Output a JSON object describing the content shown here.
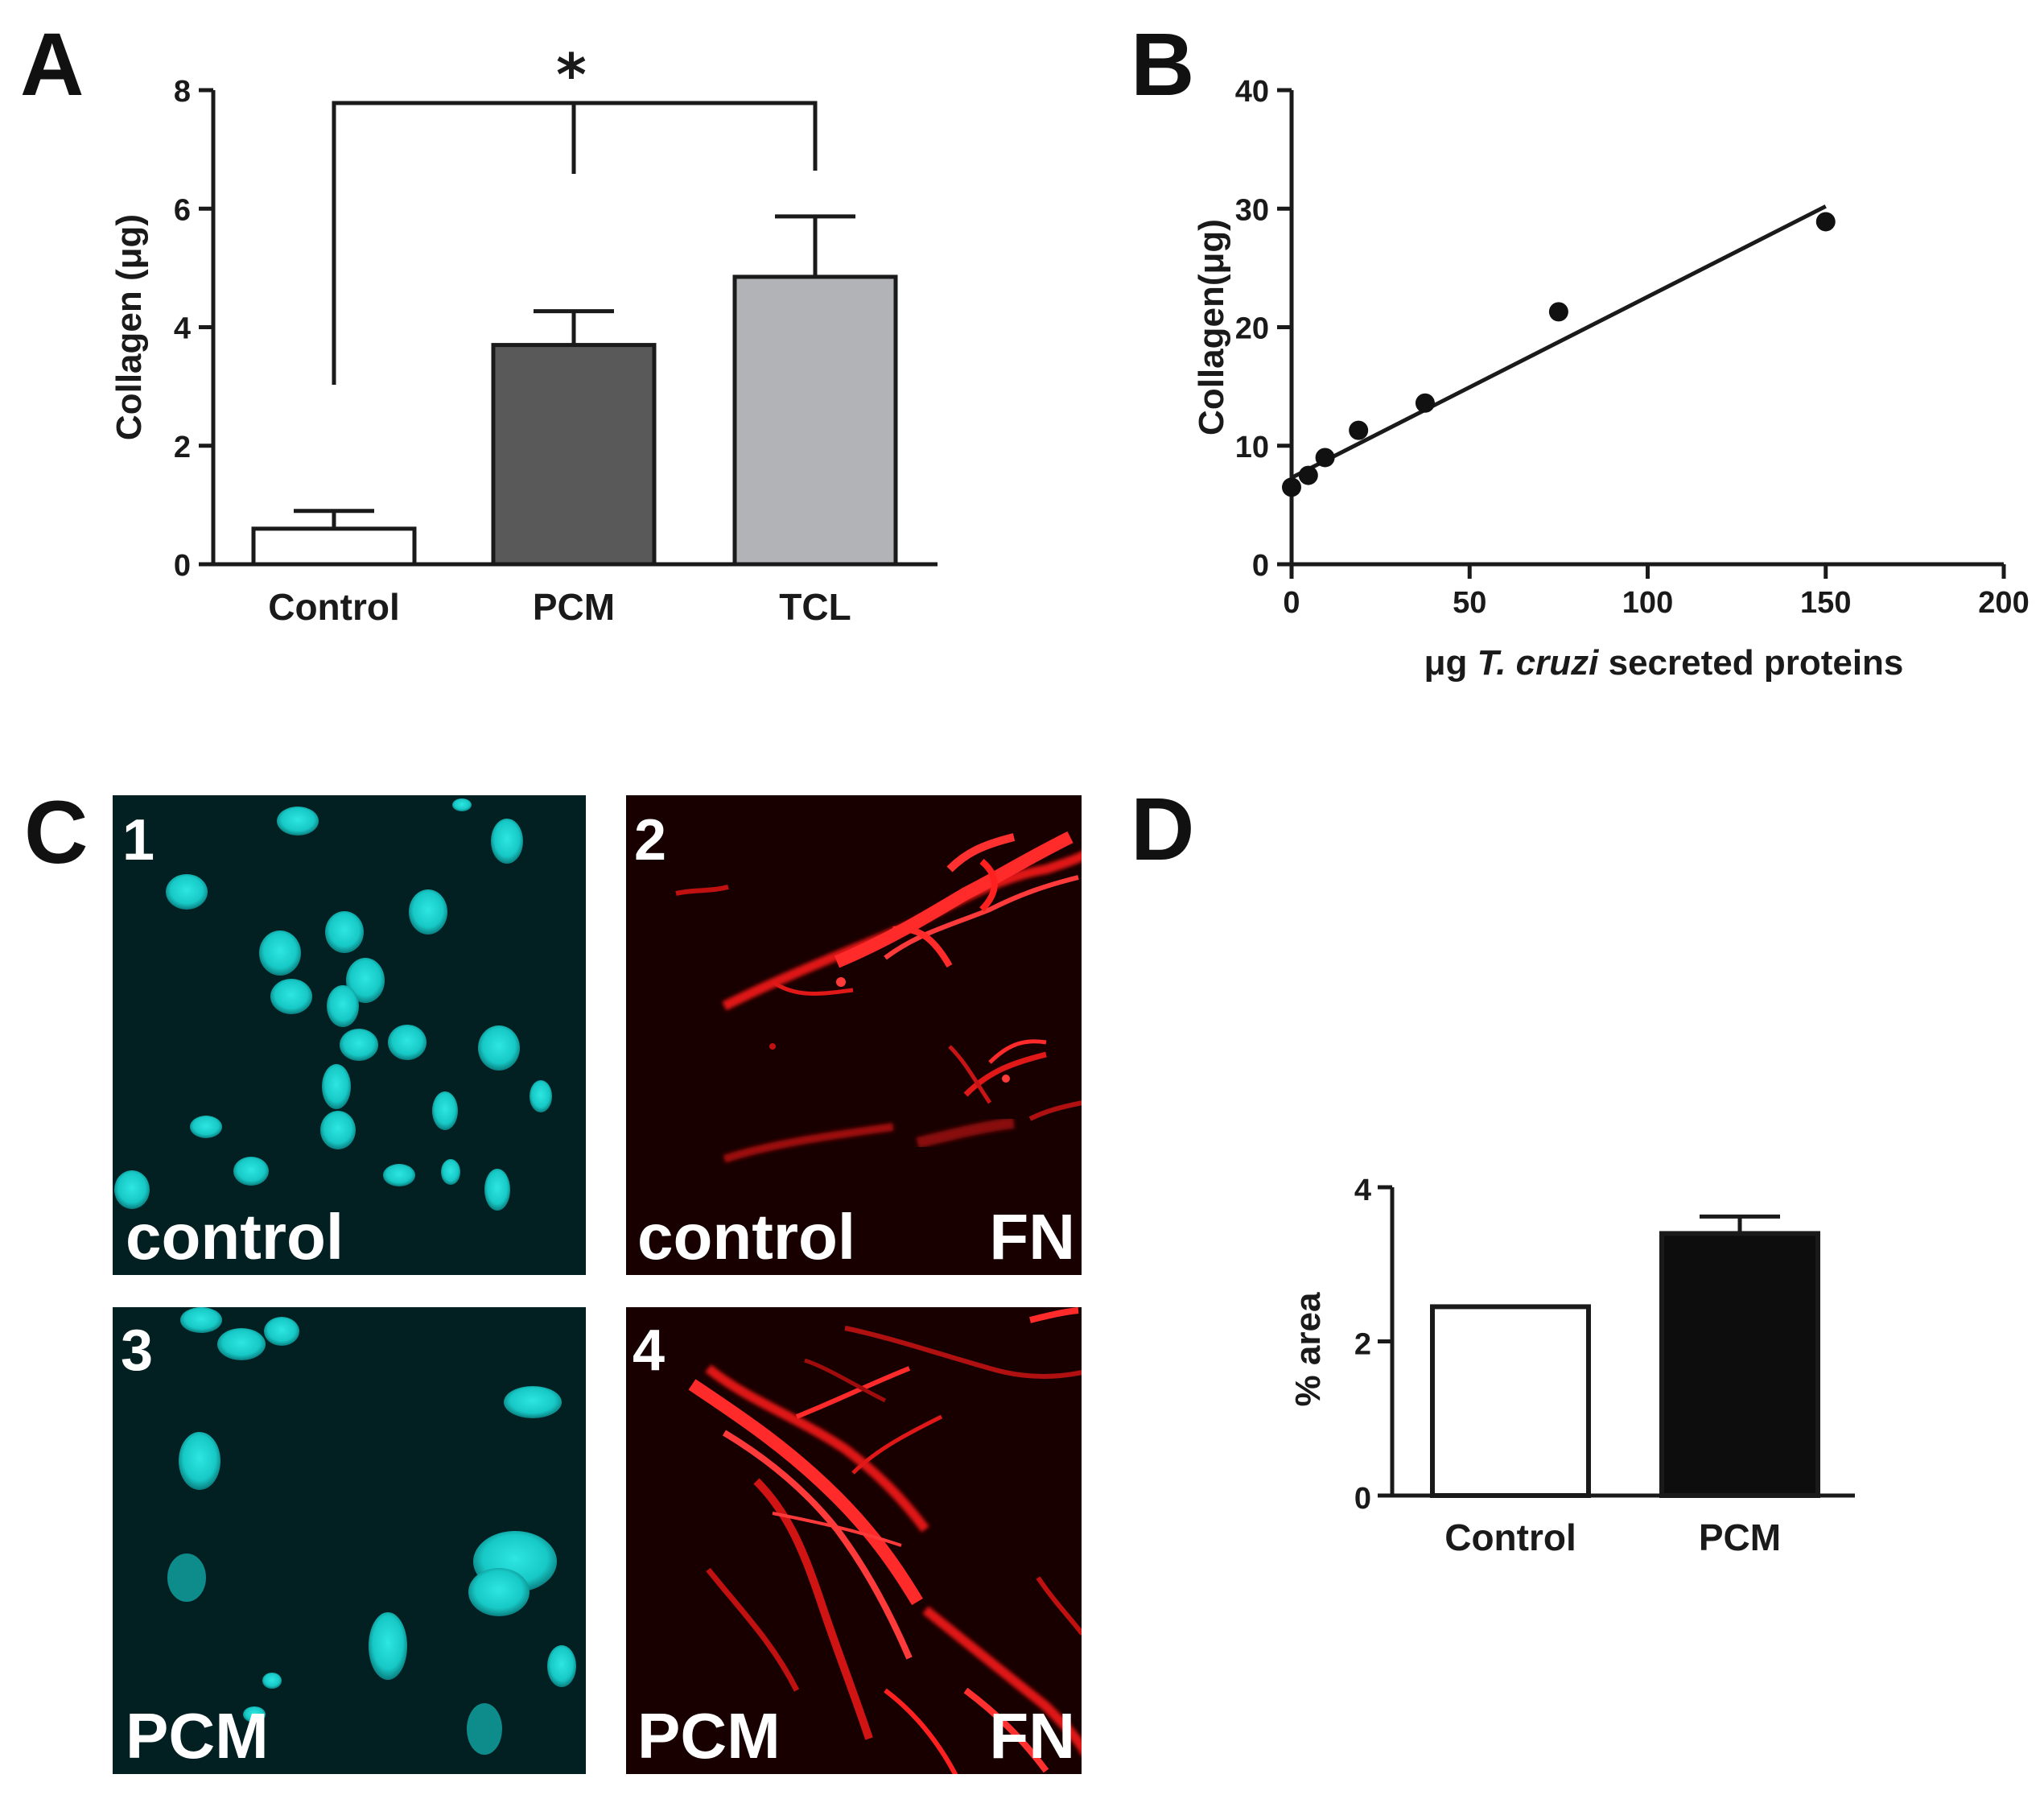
{
  "panel_letters": {
    "a": "A",
    "b": "B",
    "c": "C",
    "d": "D"
  },
  "chart_data": [
    {
      "panel": "A",
      "type": "bar",
      "categories": [
        "Control",
        "PCM",
        "TCL"
      ],
      "values": [
        0.6,
        3.7,
        4.85
      ],
      "errors": [
        0.3,
        0.57,
        1.02
      ],
      "bar_colors": [
        "#ffffff",
        "#595959",
        "#b1b3b6"
      ],
      "ylabel": "Collagen (μg)",
      "ylim": [
        0,
        8
      ],
      "yticks": [
        "0",
        "2",
        "4",
        "6",
        "8"
      ],
      "significance": "*"
    },
    {
      "panel": "B",
      "type": "scatter",
      "points": [
        {
          "x": 0,
          "y": 6.5
        },
        {
          "x": 4.7,
          "y": 7.5
        },
        {
          "x": 9.4,
          "y": 9.0
        },
        {
          "x": 18.8,
          "y": 11.3
        },
        {
          "x": 37.5,
          "y": 13.6
        },
        {
          "x": 75,
          "y": 21.3
        },
        {
          "x": 150,
          "y": 28.9
        }
      ],
      "fit_line": {
        "x": [
          0,
          150
        ],
        "y": [
          7.3,
          30.2
        ]
      },
      "ylabel": "Collagen(μg)",
      "xlabel_parts": [
        "μg ",
        "T. cruzi",
        " secreted proteins"
      ],
      "xlim": [
        0,
        200
      ],
      "ylim": [
        0,
        40
      ],
      "xticks": [
        "0",
        "50",
        "100",
        "150",
        "200"
      ],
      "yticks": [
        "0",
        "10",
        "20",
        "30",
        "40"
      ]
    },
    {
      "panel": "D",
      "type": "bar",
      "categories": [
        "Control",
        "PCM"
      ],
      "values": [
        2.45,
        3.4
      ],
      "errors": [
        0,
        0.22
      ],
      "bar_colors": [
        "#ffffff",
        "#0d0d0d"
      ],
      "ylabel": "% area",
      "ylim": [
        0,
        4
      ],
      "yticks": [
        "0",
        "2",
        "4"
      ]
    }
  ],
  "micrographs": [
    {
      "number": "1",
      "label": "control",
      "stain": "",
      "color": "cyan"
    },
    {
      "number": "2",
      "label": "control",
      "stain": "FN",
      "color": "red"
    },
    {
      "number": "3",
      "label": "PCM",
      "stain": "",
      "color": "cyan"
    },
    {
      "number": "4",
      "label": "PCM",
      "stain": "FN",
      "color": "red"
    }
  ]
}
